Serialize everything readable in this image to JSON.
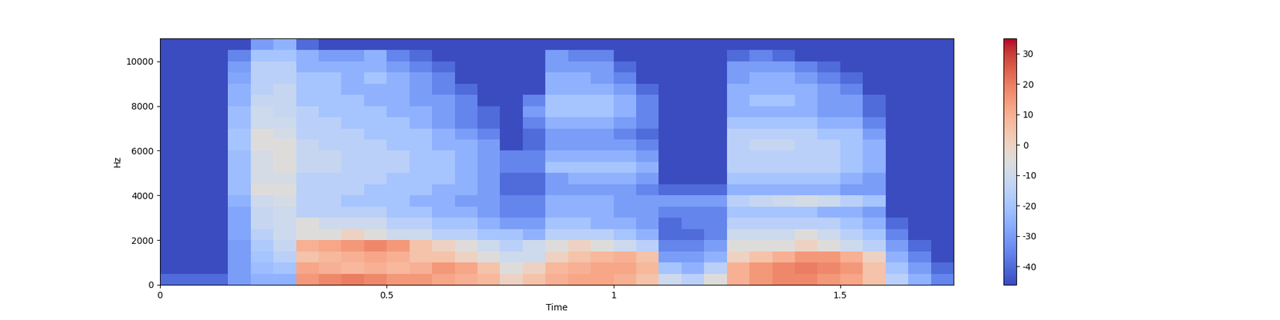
{
  "chart_data": {
    "type": "heatmap",
    "x_label": "Time",
    "y_label": "Hz",
    "x_edges": [
      0,
      0.05,
      0.1,
      0.15,
      0.2,
      0.25,
      0.3,
      0.35,
      0.4,
      0.45,
      0.5,
      0.55,
      0.6,
      0.65,
      0.7,
      0.75,
      0.8,
      0.85,
      0.9,
      0.95,
      1.0,
      1.05,
      1.1,
      1.15,
      1.2,
      1.25,
      1.3,
      1.35,
      1.4,
      1.45,
      1.5,
      1.55,
      1.6,
      1.65,
      1.7,
      1.75
    ],
    "y_edges": [
      0,
      500,
      1000,
      1500,
      2000,
      2500,
      3000,
      3500,
      4000,
      4500,
      5000,
      5500,
      6000,
      6500,
      7000,
      7500,
      8000,
      8500,
      9000,
      9500,
      10000,
      10500,
      11025
    ],
    "cells": [
      [
        -40,
        -40,
        -40,
        -30,
        -25,
        -25,
        15,
        18,
        20,
        18,
        15,
        15,
        12,
        10,
        8,
        0,
        5,
        10,
        12,
        12,
        10,
        5,
        -10,
        -15,
        -5,
        10,
        15,
        18,
        18,
        15,
        12,
        5,
        -15,
        -25,
        -35
      ],
      [
        -46,
        -46,
        -46,
        -30,
        -22,
        -20,
        12,
        10,
        8,
        10,
        8,
        10,
        15,
        12,
        5,
        -5,
        0,
        8,
        10,
        12,
        12,
        8,
        -20,
        -25,
        -15,
        10,
        15,
        18,
        20,
        18,
        15,
        5,
        -20,
        -30,
        -40
      ],
      [
        -46,
        -46,
        -46,
        -30,
        -20,
        -15,
        5,
        8,
        10,
        12,
        10,
        5,
        5,
        0,
        -5,
        -10,
        -10,
        0,
        5,
        8,
        10,
        5,
        -30,
        -30,
        -25,
        0,
        5,
        10,
        15,
        15,
        10,
        0,
        -25,
        -35,
        -46
      ],
      [
        -46,
        -46,
        -46,
        -30,
        -18,
        -12,
        10,
        12,
        15,
        18,
        15,
        5,
        0,
        -5,
        -10,
        -15,
        -10,
        -5,
        0,
        -5,
        -10,
        -15,
        -35,
        -35,
        -30,
        -5,
        -5,
        -5,
        0,
        -5,
        -10,
        -15,
        -30,
        -40,
        -46
      ],
      [
        -46,
        -46,
        -46,
        -28,
        -15,
        -10,
        -5,
        -5,
        0,
        -5,
        -10,
        -10,
        -15,
        -15,
        -20,
        -20,
        -25,
        -15,
        -15,
        -15,
        -20,
        -25,
        -40,
        -40,
        -35,
        -10,
        -10,
        -10,
        -5,
        -10,
        -15,
        -20,
        -35,
        -46,
        -46
      ],
      [
        -46,
        -46,
        -46,
        -28,
        -12,
        -10,
        -5,
        -10,
        -10,
        -10,
        -15,
        -15,
        -20,
        -20,
        -25,
        -30,
        -30,
        -20,
        -20,
        -25,
        -25,
        -30,
        -40,
        -35,
        -35,
        -15,
        -15,
        -15,
        -15,
        -15,
        -20,
        -25,
        -40,
        -46,
        -46
      ],
      [
        -46,
        -46,
        -46,
        -28,
        -12,
        -10,
        -15,
        -15,
        -15,
        -15,
        -20,
        -20,
        -25,
        -25,
        -30,
        -35,
        -35,
        -25,
        -25,
        -25,
        -30,
        -30,
        -35,
        -35,
        -35,
        -20,
        -20,
        -20,
        -20,
        -25,
        -25,
        -30,
        -46,
        -46,
        -46
      ],
      [
        -46,
        -46,
        -46,
        -25,
        -10,
        -8,
        -15,
        -15,
        -20,
        -20,
        -20,
        -25,
        -25,
        -30,
        -30,
        -35,
        -35,
        -25,
        -25,
        -25,
        -30,
        -30,
        -30,
        -30,
        -30,
        -15,
        -12,
        -10,
        -8,
        -10,
        -15,
        -20,
        -46,
        -46,
        -46
      ],
      [
        -46,
        -46,
        -46,
        -22,
        -5,
        -5,
        -15,
        -15,
        -15,
        -20,
        -20,
        -20,
        -25,
        -25,
        -30,
        -40,
        -40,
        -30,
        -30,
        -30,
        -30,
        -35,
        -40,
        -40,
        -40,
        -25,
        -25,
        -25,
        -25,
        -25,
        -30,
        -30,
        -46,
        -46,
        -46
      ],
      [
        -46,
        -46,
        -46,
        -22,
        -8,
        -8,
        -15,
        -15,
        -15,
        -15,
        -20,
        -20,
        -20,
        -25,
        -30,
        -40,
        -40,
        -30,
        -25,
        -25,
        -25,
        -30,
        -46,
        -46,
        -46,
        -20,
        -20,
        -20,
        -20,
        -20,
        -25,
        -30,
        -46,
        -46,
        -46
      ],
      [
        -46,
        -46,
        -46,
        -22,
        -8,
        -5,
        -12,
        -12,
        -15,
        -15,
        -15,
        -20,
        -20,
        -25,
        -30,
        -35,
        -35,
        -20,
        -20,
        -20,
        -20,
        -25,
        -46,
        -46,
        -46,
        -15,
        -15,
        -15,
        -15,
        -15,
        -20,
        -25,
        -46,
        -46,
        -46
      ],
      [
        -46,
        -46,
        -46,
        -22,
        -8,
        -5,
        -12,
        -12,
        -15,
        -15,
        -15,
        -20,
        -20,
        -25,
        -30,
        -35,
        -35,
        -25,
        -25,
        -25,
        -25,
        -30,
        -46,
        -46,
        -46,
        -15,
        -15,
        -15,
        -15,
        -15,
        -20,
        -25,
        -46,
        -46,
        -46
      ],
      [
        -46,
        -46,
        -46,
        -20,
        -5,
        -5,
        -12,
        -15,
        -15,
        -15,
        -20,
        -20,
        -25,
        -25,
        -30,
        -46,
        -40,
        -30,
        -30,
        -30,
        -30,
        -35,
        -46,
        -46,
        -46,
        -15,
        -12,
        -12,
        -15,
        -15,
        -20,
        -25,
        -46,
        -46,
        -46
      ],
      [
        -46,
        -46,
        -46,
        -20,
        -5,
        -8,
        -15,
        -15,
        -15,
        -20,
        -20,
        -20,
        -25,
        -30,
        -35,
        -46,
        -40,
        -30,
        -30,
        -30,
        -35,
        -40,
        -46,
        -46,
        -46,
        -15,
        -15,
        -15,
        -15,
        -20,
        -20,
        -30,
        -46,
        -46,
        -46
      ],
      [
        -46,
        -46,
        -46,
        -22,
        -10,
        -10,
        -15,
        -15,
        -20,
        -20,
        -20,
        -25,
        -30,
        -35,
        -40,
        -46,
        -35,
        -25,
        -25,
        -25,
        -30,
        -35,
        -46,
        -46,
        -46,
        -20,
        -20,
        -20,
        -20,
        -25,
        -25,
        -35,
        -46,
        -46,
        -46
      ],
      [
        -46,
        -46,
        -46,
        -22,
        -10,
        -12,
        -15,
        -20,
        -20,
        -20,
        -25,
        -25,
        -30,
        -35,
        -40,
        -46,
        -30,
        -20,
        -20,
        -20,
        -25,
        -35,
        -46,
        -46,
        -46,
        -25,
        -25,
        -25,
        -25,
        -30,
        -30,
        -40,
        -46,
        -46,
        -46
      ],
      [
        -46,
        -46,
        -46,
        -25,
        -12,
        -12,
        -20,
        -20,
        -20,
        -25,
        -25,
        -30,
        -30,
        -35,
        -46,
        -46,
        -35,
        -20,
        -20,
        -20,
        -25,
        -35,
        -46,
        -46,
        -46,
        -25,
        -20,
        -20,
        -25,
        -30,
        -30,
        -40,
        -46,
        -46,
        -46
      ],
      [
        -46,
        -46,
        -46,
        -25,
        -15,
        -12,
        -20,
        -20,
        -25,
        -25,
        -25,
        -30,
        -35,
        -40,
        -46,
        -46,
        -46,
        -25,
        -25,
        -25,
        -30,
        -40,
        -46,
        -46,
        -46,
        -25,
        -25,
        -25,
        -25,
        -30,
        -35,
        -46,
        -46,
        -46,
        -46
      ],
      [
        -46,
        -46,
        -46,
        -28,
        -15,
        -15,
        -20,
        -20,
        -25,
        -20,
        -25,
        -30,
        -35,
        -46,
        -46,
        -46,
        -46,
        -25,
        -25,
        -30,
        -35,
        -46,
        -46,
        -46,
        -46,
        -30,
        -25,
        -25,
        -30,
        -35,
        -40,
        -46,
        -46,
        -46,
        -46
      ],
      [
        -46,
        -46,
        -46,
        -30,
        -15,
        -15,
        -25,
        -25,
        -25,
        -25,
        -30,
        -35,
        -40,
        -46,
        -46,
        -46,
        -46,
        -30,
        -30,
        -30,
        -40,
        -46,
        -46,
        -46,
        -46,
        -30,
        -30,
        -30,
        -35,
        -40,
        -46,
        -46,
        -46,
        -46,
        -46
      ],
      [
        -46,
        -46,
        -46,
        -35,
        -20,
        -20,
        -25,
        -30,
        -30,
        -25,
        -35,
        -40,
        -46,
        -46,
        -46,
        -46,
        -46,
        -30,
        -35,
        -35,
        -46,
        -46,
        -46,
        -46,
        -46,
        -40,
        -35,
        -40,
        -46,
        -46,
        -46,
        -46,
        -46,
        -46,
        -46
      ],
      [
        -46,
        -46,
        -46,
        -46,
        -30,
        -25,
        -40,
        -46,
        -46,
        -46,
        -46,
        -46,
        -46,
        -46,
        -46,
        -46,
        -46,
        -46,
        -46,
        -46,
        -46,
        -46,
        -46,
        -46,
        -46,
        -46,
        -46,
        -46,
        -46,
        -46,
        -46,
        -46,
        -46,
        -46,
        -46
      ]
    ],
    "xlim": [
      0,
      1.75
    ],
    "xticks": [
      0,
      0.5,
      1,
      1.5
    ],
    "ylim": [
      0,
      11025
    ],
    "yticks": [
      0,
      2000,
      4000,
      6000,
      8000,
      10000
    ],
    "colorbar_range": [
      -46,
      35
    ],
    "colorbar_ticks": [
      -40,
      -30,
      -20,
      -10,
      0,
      10,
      20,
      30
    ]
  }
}
